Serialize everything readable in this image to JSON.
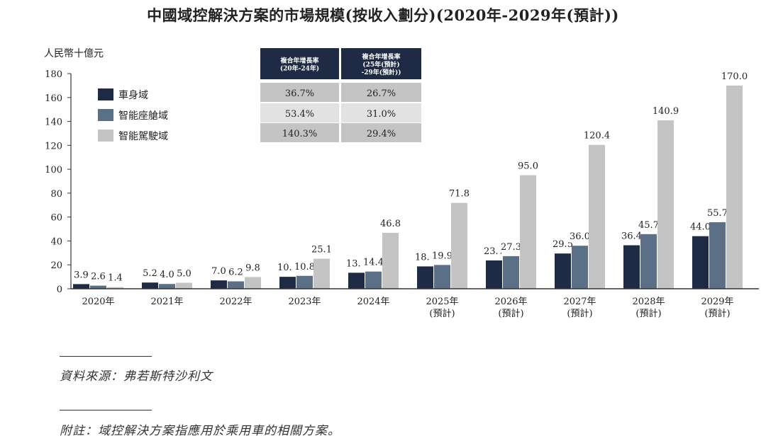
{
  "title": "中國域控解決方案的市場規模(按收入劃分)(2020年-2029年(預計))",
  "source_note": "資料來源：弗若斯特沙利文",
  "footnote": "附註：域控解決方案指應用於乘用車的相關方案。",
  "colors": {
    "body": "#1f2a44",
    "cockpit": "#5b6f87",
    "driving": "#c4c4c4",
    "header_bg": "#1f2a44",
    "row_odd": "#c4c4c4",
    "row_even": "#e2e2e2"
  },
  "chart_data": {
    "type": "bar",
    "ylabel": "人民幣十億元",
    "ylim": [
      0,
      180
    ],
    "yticks": [
      0,
      20,
      40,
      60,
      80,
      100,
      120,
      140,
      160,
      180
    ],
    "categories": [
      [
        "2020年"
      ],
      [
        "2021年"
      ],
      [
        "2022年"
      ],
      [
        "2023年"
      ],
      [
        "2024年"
      ],
      [
        "2025年",
        "(預計)"
      ],
      [
        "2026年",
        "(預計)"
      ],
      [
        "2027年",
        "(預計)"
      ],
      [
        "2028年",
        "(預計)"
      ],
      [
        "2029年",
        "(預計)"
      ]
    ],
    "series": [
      {
        "name": "車身域",
        "color": "#1f2a44",
        "values": [
          3.9,
          5.2,
          7.0,
          10.0,
          13.4,
          18.7,
          23.7,
          29.5,
          36.4,
          44.0
        ]
      },
      {
        "name": "智能座艙域",
        "color": "#5b6f87",
        "values": [
          2.6,
          4.0,
          6.2,
          10.8,
          14.4,
          19.9,
          27.3,
          36.0,
          45.7,
          55.7
        ]
      },
      {
        "name": "智能駕駛域",
        "color": "#c4c4c4",
        "values": [
          1.4,
          5.0,
          9.8,
          25.1,
          46.8,
          71.8,
          95.0,
          120.4,
          140.9,
          170.0
        ]
      }
    ],
    "data_labels": [
      [
        "3.9",
        "5.2",
        "7.0",
        "10.0",
        "13.4",
        "18.7",
        "23.7",
        "29.5",
        "36.4",
        "44.0"
      ],
      [
        "2.6",
        "4.0",
        "6.2",
        "10.8",
        "14.4",
        "19.9",
        "27.3",
        "36.0",
        "45.7",
        "55.7"
      ],
      [
        "1.4",
        "5.0",
        "9.8",
        "25.1",
        "46.8",
        "71.8",
        "95.0",
        "120.4",
        "140.9",
        "170.0"
      ]
    ],
    "legend_position": "top-left",
    "cagr_table": {
      "headers": [
        [
          "複合年增長率",
          "(20年-24年)"
        ],
        [
          "複合年增長率",
          "(25年(預計)",
          "-29年(預計))"
        ]
      ],
      "rows": [
        [
          "36.7%",
          "26.7%"
        ],
        [
          "53.4%",
          "31.0%"
        ],
        [
          "140.3%",
          "29.4%"
        ]
      ]
    }
  }
}
